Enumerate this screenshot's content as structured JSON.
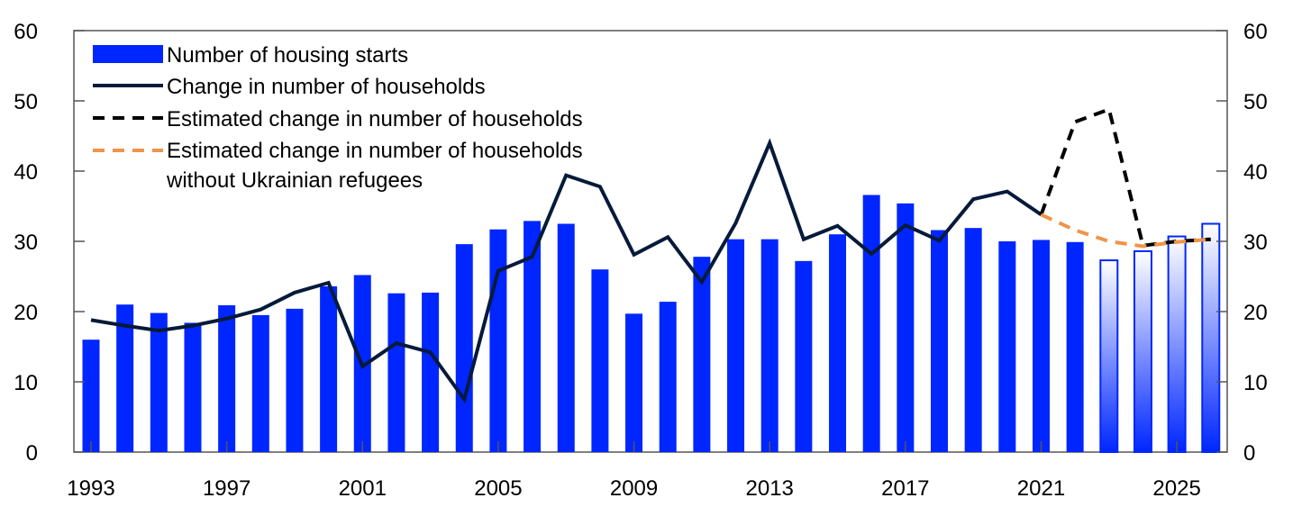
{
  "chart_data": {
    "type": "bar",
    "title": "",
    "xlabel": "",
    "ylabel": "",
    "ylim": [
      0,
      60
    ],
    "y_ticks": [
      "0",
      "10",
      "20",
      "30",
      "40",
      "50",
      "60"
    ],
    "y2_ticks": [
      "0",
      "10",
      "20",
      "30",
      "40",
      "50",
      "60"
    ],
    "x_tick_labels": [
      "1993",
      "1997",
      "2001",
      "2005",
      "2009",
      "2013",
      "2017",
      "2021",
      "2025"
    ],
    "categories": [
      1993,
      1994,
      1995,
      1996,
      1997,
      1998,
      1999,
      2000,
      2001,
      2002,
      2003,
      2004,
      2005,
      2006,
      2007,
      2008,
      2009,
      2010,
      2011,
      2012,
      2013,
      2014,
      2015,
      2016,
      2017,
      2018,
      2019,
      2020,
      2021,
      2022,
      2023,
      2024,
      2025,
      2026
    ],
    "projection_start": 2023,
    "legend_placement": "top-left",
    "series": [
      {
        "name": "Number of housing starts",
        "type": "bar",
        "color": "#0026ff",
        "values": [
          16.0,
          21.0,
          19.8,
          18.4,
          20.9,
          19.5,
          20.4,
          23.6,
          25.2,
          22.6,
          22.7,
          29.6,
          31.7,
          32.9,
          32.5,
          26.0,
          19.7,
          21.4,
          27.8,
          30.3,
          30.3,
          27.2,
          31.0,
          36.6,
          35.4,
          31.6,
          31.9,
          30.0,
          30.2,
          29.9,
          27.3,
          28.6,
          30.7,
          32.5
        ]
      },
      {
        "name": "Change in number of households",
        "type": "line",
        "color": "#061a3a",
        "x": [
          1993,
          1994,
          1995,
          1996,
          1997,
          1998,
          1999,
          2000,
          2001,
          2002,
          2003,
          2004,
          2005,
          2006,
          2007,
          2008,
          2009,
          2010,
          2011,
          2012,
          2013,
          2014,
          2015,
          2016,
          2017,
          2018,
          2019,
          2020,
          2021
        ],
        "values": [
          18.8,
          18.0,
          17.3,
          18.0,
          19.0,
          20.3,
          22.7,
          24.1,
          12.2,
          15.5,
          14.2,
          7.5,
          25.8,
          27.8,
          39.4,
          37.8,
          28.1,
          30.6,
          24.2,
          32.6,
          44.0,
          30.3,
          32.2,
          28.2,
          32.3,
          30.1,
          36.0,
          37.1,
          33.8
        ]
      },
      {
        "name": "Estimated change in number of households",
        "type": "line",
        "style": "dashed",
        "color": "#000000",
        "x": [
          2021,
          2022,
          2023,
          2024,
          2025,
          2026
        ],
        "values": [
          33.8,
          47.0,
          48.8,
          29.4,
          30.0,
          30.3
        ]
      },
      {
        "name": "Estimated change in number of households without Ukrainian refugees",
        "type": "line",
        "style": "dashed",
        "color": "#f0944a",
        "x": [
          2021,
          2022,
          2023,
          2024,
          2025,
          2026
        ],
        "values": [
          33.8,
          31.6,
          30.0,
          29.3,
          29.9,
          30.3
        ]
      }
    ],
    "legend": [
      {
        "label": "Number of housing starts"
      },
      {
        "label": "Change in number of households"
      },
      {
        "label": "Estimated change in number of households"
      },
      {
        "label": "Estimated change in number of households",
        "label2": "without Ukrainian refugees"
      }
    ]
  }
}
